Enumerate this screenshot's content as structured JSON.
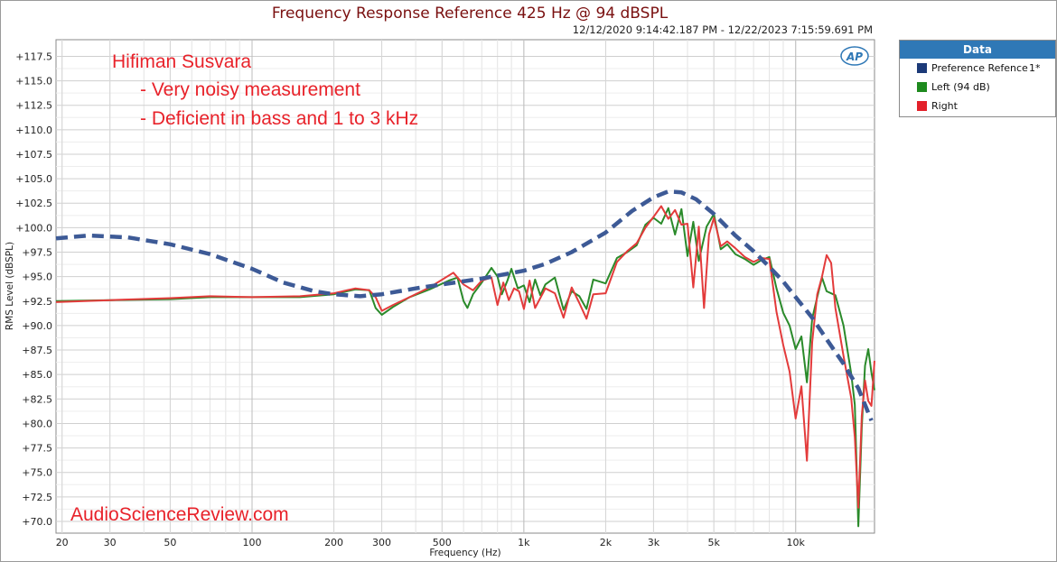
{
  "chart_data": {
    "type": "line",
    "title": "Frequency Response Reference 425 Hz @ 94 dBSPL",
    "subtitle": "12/12/2020 9:14:42.187 PM - 12/22/2023 7:15:59.691 PM",
    "xlabel": "Frequency (Hz)",
    "ylabel": "RMS Level (dBSPL)",
    "xscale": "log",
    "xlim": [
      19,
      19500
    ],
    "ylim": [
      68.8,
      119.2
    ],
    "x_ticks": [
      {
        "value": 20,
        "label": "20"
      },
      {
        "value": 30,
        "label": "30"
      },
      {
        "value": 50,
        "label": "50"
      },
      {
        "value": 100,
        "label": "100"
      },
      {
        "value": 200,
        "label": "200"
      },
      {
        "value": 300,
        "label": "300"
      },
      {
        "value": 500,
        "label": "500"
      },
      {
        "value": 1000,
        "label": "1k"
      },
      {
        "value": 2000,
        "label": "2k"
      },
      {
        "value": 3000,
        "label": "3k"
      },
      {
        "value": 5000,
        "label": "5k"
      },
      {
        "value": 10000,
        "label": "10k"
      }
    ],
    "y_ticks": [
      {
        "value": 117.5,
        "label": "+117.5"
      },
      {
        "value": 115.0,
        "label": "+115.0"
      },
      {
        "value": 112.5,
        "label": "+112.5"
      },
      {
        "value": 110.0,
        "label": "+110.0"
      },
      {
        "value": 107.5,
        "label": "+107.5"
      },
      {
        "value": 105.0,
        "label": "+105.0"
      },
      {
        "value": 102.5,
        "label": "+102.5"
      },
      {
        "value": 100.0,
        "label": "+100.0"
      },
      {
        "value": 97.5,
        "label": "+97.5"
      },
      {
        "value": 95.0,
        "label": "+95.0"
      },
      {
        "value": 92.5,
        "label": "+92.5"
      },
      {
        "value": 90.0,
        "label": "+90.0"
      },
      {
        "value": 87.5,
        "label": "+87.5"
      },
      {
        "value": 85.0,
        "label": "+85.0"
      },
      {
        "value": 82.5,
        "label": "+82.5"
      },
      {
        "value": 80.0,
        "label": "+80.0"
      },
      {
        "value": 77.5,
        "label": "+77.5"
      },
      {
        "value": 75.0,
        "label": "+75.0"
      },
      {
        "value": 72.5,
        "label": "+72.5"
      },
      {
        "value": 70.0,
        "label": "+70.0"
      }
    ],
    "grid": true,
    "legend_position": "right",
    "series": [
      {
        "name": "Preference Refence",
        "legend_mark": "1*",
        "color": "#3d5a96",
        "style": "dashed",
        "points": [
          [
            19,
            98.9
          ],
          [
            25,
            99.2
          ],
          [
            35,
            99.0
          ],
          [
            50,
            98.3
          ],
          [
            70,
            97.3
          ],
          [
            100,
            95.8
          ],
          [
            130,
            94.4
          ],
          [
            170,
            93.5
          ],
          [
            200,
            93.2
          ],
          [
            250,
            93.0
          ],
          [
            300,
            93.2
          ],
          [
            400,
            93.8
          ],
          [
            500,
            94.2
          ],
          [
            700,
            94.8
          ],
          [
            1000,
            95.6
          ],
          [
            1200,
            96.3
          ],
          [
            1500,
            97.5
          ],
          [
            2000,
            99.5
          ],
          [
            2500,
            101.7
          ],
          [
            3000,
            103.1
          ],
          [
            3400,
            103.7
          ],
          [
            3800,
            103.6
          ],
          [
            4300,
            102.9
          ],
          [
            5000,
            101.4
          ],
          [
            6000,
            99.2
          ],
          [
            7000,
            97.6
          ],
          [
            8000,
            96.0
          ],
          [
            9000,
            94.5
          ],
          [
            10000,
            92.9
          ],
          [
            11500,
            90.8
          ],
          [
            13000,
            88.6
          ],
          [
            15000,
            86.1
          ],
          [
            17000,
            83.6
          ],
          [
            19000,
            80.3
          ]
        ]
      },
      {
        "name": "Left (94 dB)",
        "color": "#2a8a2a",
        "style": "solid",
        "points": [
          [
            19,
            92.5
          ],
          [
            30,
            92.6
          ],
          [
            50,
            92.7
          ],
          [
            70,
            92.9
          ],
          [
            100,
            92.9
          ],
          [
            150,
            92.9
          ],
          [
            200,
            93.2
          ],
          [
            240,
            93.7
          ],
          [
            270,
            93.6
          ],
          [
            285,
            91.8
          ],
          [
            300,
            91.1
          ],
          [
            330,
            91.9
          ],
          [
            380,
            92.9
          ],
          [
            450,
            93.7
          ],
          [
            530,
            94.6
          ],
          [
            570,
            94.9
          ],
          [
            600,
            92.5
          ],
          [
            620,
            91.8
          ],
          [
            650,
            93.2
          ],
          [
            700,
            94.4
          ],
          [
            760,
            95.9
          ],
          [
            800,
            95.0
          ],
          [
            830,
            93.2
          ],
          [
            870,
            94.6
          ],
          [
            900,
            95.8
          ],
          [
            950,
            93.8
          ],
          [
            1000,
            94.1
          ],
          [
            1050,
            92.4
          ],
          [
            1100,
            94.7
          ],
          [
            1150,
            93.1
          ],
          [
            1200,
            94.2
          ],
          [
            1300,
            94.9
          ],
          [
            1400,
            91.6
          ],
          [
            1500,
            93.5
          ],
          [
            1600,
            93.0
          ],
          [
            1700,
            91.7
          ],
          [
            1800,
            94.7
          ],
          [
            2000,
            94.3
          ],
          [
            2200,
            96.9
          ],
          [
            2400,
            97.5
          ],
          [
            2600,
            98.2
          ],
          [
            2800,
            100.3
          ],
          [
            3000,
            101.0
          ],
          [
            3200,
            100.4
          ],
          [
            3400,
            102.0
          ],
          [
            3600,
            99.3
          ],
          [
            3800,
            101.9
          ],
          [
            4000,
            97.1
          ],
          [
            4200,
            100.6
          ],
          [
            4400,
            96.6
          ],
          [
            4700,
            100.1
          ],
          [
            5000,
            101.4
          ],
          [
            5300,
            97.8
          ],
          [
            5600,
            98.3
          ],
          [
            6000,
            97.3
          ],
          [
            6500,
            96.8
          ],
          [
            7000,
            96.2
          ],
          [
            7500,
            96.7
          ],
          [
            8000,
            97.0
          ],
          [
            8500,
            93.8
          ],
          [
            9000,
            91.3
          ],
          [
            9500,
            90.0
          ],
          [
            10000,
            87.6
          ],
          [
            10500,
            88.9
          ],
          [
            11000,
            84.2
          ],
          [
            11500,
            90.7
          ],
          [
            12000,
            92.9
          ],
          [
            12500,
            94.9
          ],
          [
            13000,
            93.5
          ],
          [
            14000,
            93.1
          ],
          [
            15000,
            90.0
          ],
          [
            16000,
            85.1
          ],
          [
            16500,
            81.9
          ],
          [
            17000,
            69.5
          ],
          [
            17500,
            79.6
          ],
          [
            18000,
            85.9
          ],
          [
            18500,
            87.6
          ],
          [
            19000,
            85.2
          ],
          [
            19500,
            83.4
          ]
        ]
      },
      {
        "name": "Right",
        "color": "#e33b3b",
        "style": "solid",
        "points": [
          [
            19,
            92.4
          ],
          [
            30,
            92.6
          ],
          [
            50,
            92.8
          ],
          [
            70,
            93.0
          ],
          [
            100,
            92.9
          ],
          [
            150,
            93.0
          ],
          [
            200,
            93.3
          ],
          [
            240,
            93.8
          ],
          [
            270,
            93.6
          ],
          [
            285,
            92.9
          ],
          [
            300,
            91.5
          ],
          [
            330,
            92.1
          ],
          [
            380,
            92.9
          ],
          [
            450,
            93.9
          ],
          [
            550,
            95.4
          ],
          [
            600,
            94.2
          ],
          [
            650,
            93.6
          ],
          [
            700,
            94.6
          ],
          [
            760,
            94.9
          ],
          [
            800,
            92.1
          ],
          [
            840,
            94.4
          ],
          [
            880,
            92.6
          ],
          [
            920,
            93.8
          ],
          [
            960,
            93.5
          ],
          [
            1000,
            91.7
          ],
          [
            1050,
            94.6
          ],
          [
            1100,
            91.8
          ],
          [
            1200,
            93.8
          ],
          [
            1300,
            93.3
          ],
          [
            1400,
            90.8
          ],
          [
            1500,
            93.9
          ],
          [
            1600,
            92.3
          ],
          [
            1700,
            90.7
          ],
          [
            1800,
            93.2
          ],
          [
            2000,
            93.3
          ],
          [
            2200,
            96.5
          ],
          [
            2400,
            97.6
          ],
          [
            2600,
            98.4
          ],
          [
            2800,
            100.0
          ],
          [
            3000,
            101.1
          ],
          [
            3200,
            102.2
          ],
          [
            3400,
            100.9
          ],
          [
            3600,
            101.8
          ],
          [
            3800,
            100.3
          ],
          [
            4000,
            100.4
          ],
          [
            4200,
            93.9
          ],
          [
            4400,
            100.1
          ],
          [
            4600,
            91.8
          ],
          [
            4800,
            99.3
          ],
          [
            5000,
            101.0
          ],
          [
            5300,
            98.1
          ],
          [
            5600,
            98.6
          ],
          [
            6000,
            97.9
          ],
          [
            6500,
            97.0
          ],
          [
            7000,
            96.5
          ],
          [
            7500,
            96.9
          ],
          [
            8000,
            96.8
          ],
          [
            8500,
            91.4
          ],
          [
            9000,
            88.0
          ],
          [
            9500,
            85.3
          ],
          [
            10000,
            80.5
          ],
          [
            10500,
            83.8
          ],
          [
            11000,
            76.2
          ],
          [
            11500,
            88.3
          ],
          [
            12000,
            93.2
          ],
          [
            12500,
            95.0
          ],
          [
            13000,
            97.2
          ],
          [
            13500,
            96.4
          ],
          [
            14000,
            91.8
          ],
          [
            15000,
            86.9
          ],
          [
            16000,
            82.6
          ],
          [
            16500,
            78.6
          ],
          [
            17000,
            71.4
          ],
          [
            17500,
            80.8
          ],
          [
            18000,
            84.4
          ],
          [
            18500,
            82.3
          ],
          [
            19000,
            81.8
          ],
          [
            19500,
            86.4
          ]
        ]
      }
    ]
  },
  "annotations": {
    "headphone": "Hifiman Susvara",
    "note1": "- Very noisy measurement",
    "note2": "- Deficient in bass and 1 to 3 kHz",
    "watermark": "AudioScienceReview.com"
  },
  "logo_text": "AP",
  "legend": {
    "header": "Data",
    "items": [
      {
        "label": "Preference Refence",
        "mark": "1*",
        "color": "#1c3a78"
      },
      {
        "label": "Left (94 dB)",
        "mark": "",
        "color": "#1e8a1e"
      },
      {
        "label": "Right",
        "mark": "",
        "color": "#e3202a"
      }
    ]
  }
}
